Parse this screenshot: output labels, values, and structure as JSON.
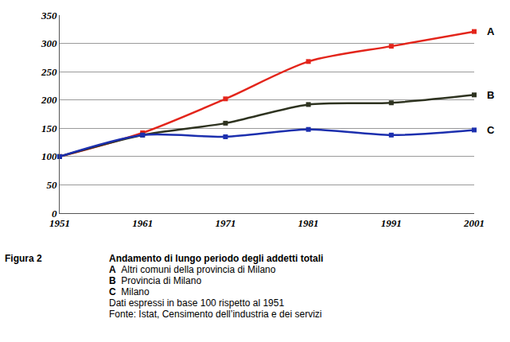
{
  "chart_data": {
    "type": "line",
    "x": [
      1951,
      1961,
      1971,
      1981,
      1991,
      2001
    ],
    "series": [
      {
        "name": "A",
        "color": "#e3251b",
        "values": [
          100,
          142,
          202,
          268,
          295,
          321
        ]
      },
      {
        "name": "B",
        "color": "#2e3320",
        "values": [
          100,
          138,
          159,
          192,
          195,
          209
        ]
      },
      {
        "name": "C",
        "color": "#1c2fae",
        "values": [
          100,
          138,
          135,
          148,
          138,
          147
        ]
      }
    ],
    "xlim": [
      1951,
      2001
    ],
    "xticks": [
      1951,
      1961,
      1971,
      1981,
      1991,
      2001
    ],
    "ylim": [
      0,
      350
    ],
    "yticks": [
      0,
      50,
      100,
      150,
      200,
      250,
      300,
      350
    ],
    "grid": true,
    "marker": "square",
    "line_style": "solid"
  },
  "caption": {
    "label": "Figura 2",
    "title": "Andamento di lungo periodo degli addetti totali",
    "items": [
      {
        "key": "A",
        "text": "Altri comuni della provincia di Milano"
      },
      {
        "key": "B",
        "text": "Provincia di Milano"
      },
      {
        "key": "C",
        "text": "Milano"
      }
    ],
    "notes": [
      "Dati espressi in base 100 rispetto al 1951",
      "Fonte: Istat, Censimento dell’industria e dei servizi"
    ]
  }
}
